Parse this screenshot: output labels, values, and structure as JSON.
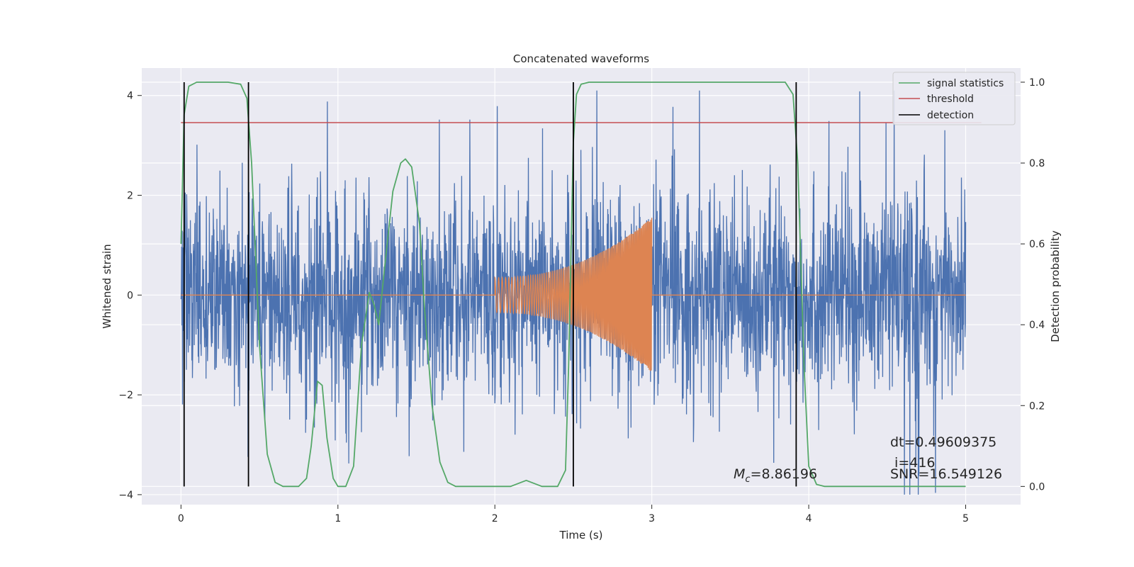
{
  "chart_data": {
    "type": "line",
    "title": "Concatenated waveforms",
    "xlabel": "Time (s)",
    "ylabel": "Whitened strain",
    "y2label": "Detection probability",
    "xlim": [
      -0.25,
      5.35
    ],
    "ylim": [
      -4.2,
      4.55
    ],
    "y2lim": [
      -0.045,
      1.035
    ],
    "xticks": [
      "0",
      "1",
      "2",
      "3",
      "4",
      "5"
    ],
    "yticks": [
      "−4",
      "−2",
      "0",
      "2",
      "4"
    ],
    "y2ticks": [
      "0.0",
      "0.2",
      "0.4",
      "0.6",
      "0.8",
      "1.0"
    ],
    "grid": true,
    "legend_position": "top-right",
    "colors": {
      "strain": "#4c72b0",
      "template": "#dd8452",
      "signal": "#55a868",
      "threshold": "#c44e52",
      "detection": "#000000",
      "background": "#eaeaf2"
    },
    "series": [
      {
        "name": "signal statistics",
        "axis": "right",
        "x": [
          0.0,
          0.02,
          0.05,
          0.1,
          0.2,
          0.3,
          0.38,
          0.42,
          0.45,
          0.5,
          0.55,
          0.6,
          0.65,
          0.75,
          0.8,
          0.83,
          0.87,
          0.9,
          0.93,
          0.97,
          1.0,
          1.05,
          1.1,
          1.15,
          1.2,
          1.23,
          1.26,
          1.3,
          1.35,
          1.4,
          1.43,
          1.47,
          1.52,
          1.55,
          1.6,
          1.65,
          1.7,
          1.75,
          1.8,
          2.0,
          2.1,
          2.2,
          2.3,
          2.4,
          2.45,
          2.47,
          2.5,
          2.52,
          2.55,
          2.6,
          2.8,
          3.5,
          3.85,
          3.9,
          3.93,
          3.97,
          4.0,
          4.05,
          4.1,
          4.2,
          4.5,
          5.0
        ],
        "y": [
          0.6,
          0.92,
          0.99,
          1.0,
          1.0,
          1.0,
          0.995,
          0.96,
          0.8,
          0.35,
          0.08,
          0.01,
          0.0,
          0.0,
          0.02,
          0.1,
          0.26,
          0.25,
          0.12,
          0.02,
          0.0,
          0.0,
          0.05,
          0.35,
          0.48,
          0.45,
          0.4,
          0.55,
          0.73,
          0.8,
          0.81,
          0.79,
          0.65,
          0.45,
          0.2,
          0.06,
          0.01,
          0.0,
          0.0,
          0.0,
          0.0,
          0.015,
          0.0,
          0.0,
          0.04,
          0.3,
          0.85,
          0.97,
          0.995,
          1.0,
          1.0,
          1.0,
          1.0,
          0.97,
          0.8,
          0.3,
          0.05,
          0.005,
          0.0,
          0.0,
          0.0,
          0.0
        ]
      },
      {
        "name": "threshold",
        "axis": "right",
        "x": [
          0.0,
          5.1
        ],
        "y": [
          0.9,
          0.9
        ]
      },
      {
        "name": "detection",
        "axis": "right",
        "x": [
          0.02,
          0.43,
          2.5,
          3.92
        ]
      },
      {
        "axis": "left",
        "description_free": true,
        "x_start": 0.0,
        "x_end": 5.0,
        "typical_amplitude": 1.0
      },
      {
        "axis": "left",
        "x_start": 2.0,
        "x_end": 3.0,
        "amplitude_start": 0.35,
        "amplitude_end": 1.55
      }
    ],
    "annotations": {
      "dt": "dt=0.49609375",
      "i": " i=416",
      "snr": "SNR=16.549126",
      "mc_symbol": "M",
      "mc_sub": "c",
      "mc_value": "=8.86196"
    }
  }
}
